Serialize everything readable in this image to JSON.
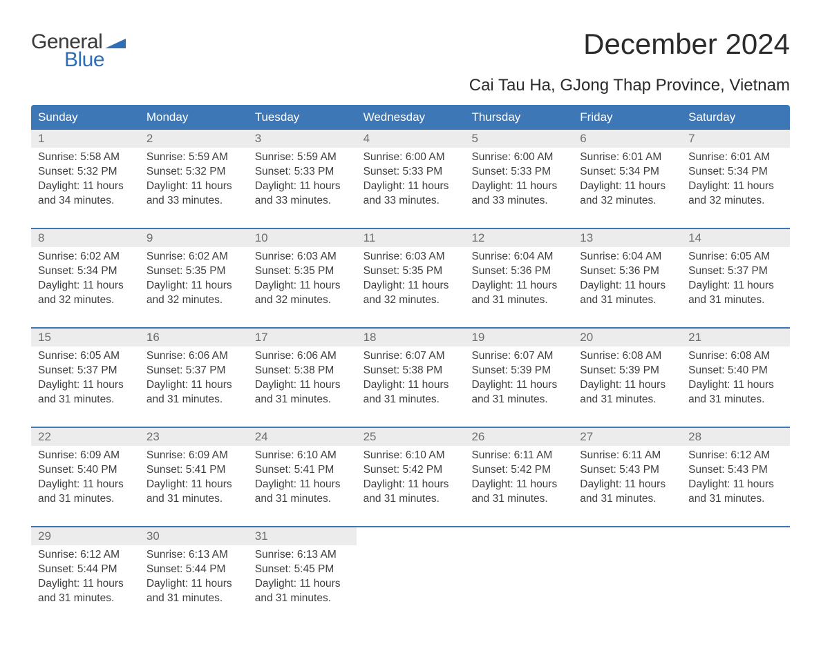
{
  "brand": {
    "word1": "General",
    "word2": "Blue",
    "accent_color": "#2f6fb5",
    "text_color": "#3a3a3a"
  },
  "title": "December 2024",
  "location": "Cai Tau Ha, GJong Thap Province, Vietnam",
  "colors": {
    "header_bg": "#3d77b6",
    "header_text": "#ffffff",
    "week_border": "#3d77b6",
    "daynum_bg": "#ececec",
    "daynum_text": "#6d6d6d",
    "body_text": "#3f3f3f",
    "page_bg": "#ffffff"
  },
  "day_headers": [
    "Sunday",
    "Monday",
    "Tuesday",
    "Wednesday",
    "Thursday",
    "Friday",
    "Saturday"
  ],
  "weeks": [
    [
      {
        "n": "1",
        "sr": "5:58 AM",
        "ss": "5:32 PM",
        "dl": "11 hours and 34 minutes."
      },
      {
        "n": "2",
        "sr": "5:59 AM",
        "ss": "5:32 PM",
        "dl": "11 hours and 33 minutes."
      },
      {
        "n": "3",
        "sr": "5:59 AM",
        "ss": "5:33 PM",
        "dl": "11 hours and 33 minutes."
      },
      {
        "n": "4",
        "sr": "6:00 AM",
        "ss": "5:33 PM",
        "dl": "11 hours and 33 minutes."
      },
      {
        "n": "5",
        "sr": "6:00 AM",
        "ss": "5:33 PM",
        "dl": "11 hours and 33 minutes."
      },
      {
        "n": "6",
        "sr": "6:01 AM",
        "ss": "5:34 PM",
        "dl": "11 hours and 32 minutes."
      },
      {
        "n": "7",
        "sr": "6:01 AM",
        "ss": "5:34 PM",
        "dl": "11 hours and 32 minutes."
      }
    ],
    [
      {
        "n": "8",
        "sr": "6:02 AM",
        "ss": "5:34 PM",
        "dl": "11 hours and 32 minutes."
      },
      {
        "n": "9",
        "sr": "6:02 AM",
        "ss": "5:35 PM",
        "dl": "11 hours and 32 minutes."
      },
      {
        "n": "10",
        "sr": "6:03 AM",
        "ss": "5:35 PM",
        "dl": "11 hours and 32 minutes."
      },
      {
        "n": "11",
        "sr": "6:03 AM",
        "ss": "5:35 PM",
        "dl": "11 hours and 32 minutes."
      },
      {
        "n": "12",
        "sr": "6:04 AM",
        "ss": "5:36 PM",
        "dl": "11 hours and 31 minutes."
      },
      {
        "n": "13",
        "sr": "6:04 AM",
        "ss": "5:36 PM",
        "dl": "11 hours and 31 minutes."
      },
      {
        "n": "14",
        "sr": "6:05 AM",
        "ss": "5:37 PM",
        "dl": "11 hours and 31 minutes."
      }
    ],
    [
      {
        "n": "15",
        "sr": "6:05 AM",
        "ss": "5:37 PM",
        "dl": "11 hours and 31 minutes."
      },
      {
        "n": "16",
        "sr": "6:06 AM",
        "ss": "5:37 PM",
        "dl": "11 hours and 31 minutes."
      },
      {
        "n": "17",
        "sr": "6:06 AM",
        "ss": "5:38 PM",
        "dl": "11 hours and 31 minutes."
      },
      {
        "n": "18",
        "sr": "6:07 AM",
        "ss": "5:38 PM",
        "dl": "11 hours and 31 minutes."
      },
      {
        "n": "19",
        "sr": "6:07 AM",
        "ss": "5:39 PM",
        "dl": "11 hours and 31 minutes."
      },
      {
        "n": "20",
        "sr": "6:08 AM",
        "ss": "5:39 PM",
        "dl": "11 hours and 31 minutes."
      },
      {
        "n": "21",
        "sr": "6:08 AM",
        "ss": "5:40 PM",
        "dl": "11 hours and 31 minutes."
      }
    ],
    [
      {
        "n": "22",
        "sr": "6:09 AM",
        "ss": "5:40 PM",
        "dl": "11 hours and 31 minutes."
      },
      {
        "n": "23",
        "sr": "6:09 AM",
        "ss": "5:41 PM",
        "dl": "11 hours and 31 minutes."
      },
      {
        "n": "24",
        "sr": "6:10 AM",
        "ss": "5:41 PM",
        "dl": "11 hours and 31 minutes."
      },
      {
        "n": "25",
        "sr": "6:10 AM",
        "ss": "5:42 PM",
        "dl": "11 hours and 31 minutes."
      },
      {
        "n": "26",
        "sr": "6:11 AM",
        "ss": "5:42 PM",
        "dl": "11 hours and 31 minutes."
      },
      {
        "n": "27",
        "sr": "6:11 AM",
        "ss": "5:43 PM",
        "dl": "11 hours and 31 minutes."
      },
      {
        "n": "28",
        "sr": "6:12 AM",
        "ss": "5:43 PM",
        "dl": "11 hours and 31 minutes."
      }
    ],
    [
      {
        "n": "29",
        "sr": "6:12 AM",
        "ss": "5:44 PM",
        "dl": "11 hours and 31 minutes."
      },
      {
        "n": "30",
        "sr": "6:13 AM",
        "ss": "5:44 PM",
        "dl": "11 hours and 31 minutes."
      },
      {
        "n": "31",
        "sr": "6:13 AM",
        "ss": "5:45 PM",
        "dl": "11 hours and 31 minutes."
      },
      null,
      null,
      null,
      null
    ]
  ],
  "labels": {
    "sunrise": "Sunrise: ",
    "sunset": "Sunset: ",
    "daylight": "Daylight: "
  }
}
